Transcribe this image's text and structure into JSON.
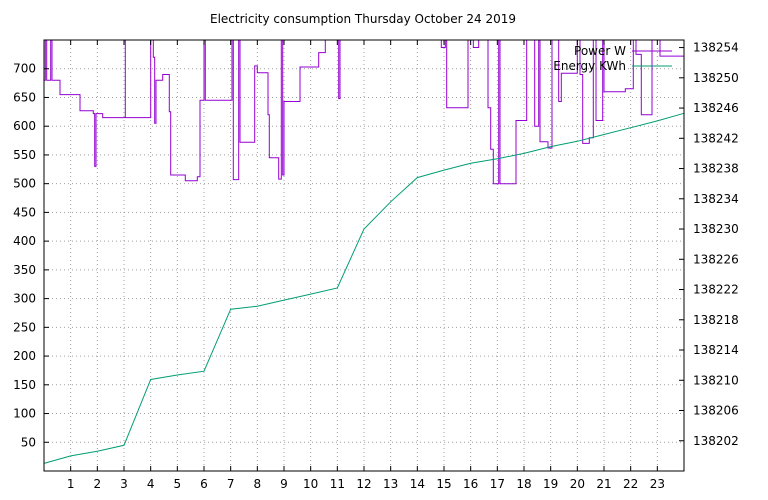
{
  "chart_data": {
    "type": "line",
    "title": "Electricity consumption Thursday October 24 2019",
    "xlim": [
      0,
      24
    ],
    "x_ticks": [
      1,
      2,
      3,
      4,
      5,
      6,
      7,
      8,
      9,
      10,
      11,
      12,
      13,
      14,
      15,
      16,
      17,
      18,
      19,
      20,
      21,
      22,
      23
    ],
    "y_left": {
      "lim": [
        0,
        750
      ],
      "ticks": [
        50,
        100,
        150,
        200,
        250,
        300,
        350,
        400,
        450,
        500,
        550,
        600,
        650,
        700
      ]
    },
    "y_right": {
      "lim": [
        138198,
        138255
      ],
      "ticks": [
        138202,
        138206,
        138210,
        138214,
        138218,
        138222,
        138226,
        138230,
        138234,
        138238,
        138242,
        138246,
        138250,
        138254
      ]
    },
    "grid": true,
    "legend_position": "top-right",
    "series": [
      {
        "name": "Power W",
        "axis": "left",
        "color": "#9400d3",
        "step": true,
        "points": [
          [
            0.0,
            680
          ],
          [
            0.05,
            750
          ],
          [
            0.1,
            680
          ],
          [
            0.25,
            750
          ],
          [
            0.3,
            680
          ],
          [
            0.6,
            655
          ],
          [
            1.35,
            627
          ],
          [
            1.85,
            622
          ],
          [
            1.9,
            530
          ],
          [
            1.95,
            622
          ],
          [
            2.2,
            615
          ],
          [
            3.05,
            750
          ],
          [
            3.05,
            615
          ],
          [
            4.0,
            750
          ],
          [
            4.1,
            720
          ],
          [
            4.15,
            605
          ],
          [
            4.2,
            680
          ],
          [
            4.45,
            690
          ],
          [
            4.7,
            625
          ],
          [
            4.75,
            515
          ],
          [
            5.3,
            505
          ],
          [
            5.75,
            512
          ],
          [
            5.85,
            645
          ],
          [
            6.0,
            750
          ],
          [
            6.05,
            645
          ],
          [
            7.05,
            750
          ],
          [
            7.1,
            507
          ],
          [
            7.3,
            750
          ],
          [
            7.35,
            572
          ],
          [
            7.9,
            705
          ],
          [
            8.0,
            693
          ],
          [
            8.4,
            620
          ],
          [
            8.45,
            545
          ],
          [
            8.8,
            508
          ],
          [
            8.9,
            750
          ],
          [
            8.95,
            515
          ],
          [
            9.0,
            643
          ],
          [
            9.6,
            703
          ],
          [
            10.3,
            728
          ],
          [
            10.55,
            750
          ],
          [
            11.0,
            750
          ],
          [
            11.05,
            648
          ],
          [
            11.1,
            750
          ],
          [
            14.9,
            737
          ],
          [
            15.05,
            750
          ],
          [
            15.1,
            632
          ],
          [
            15.9,
            750
          ],
          [
            16.1,
            737
          ],
          [
            16.3,
            750
          ],
          [
            16.55,
            750
          ],
          [
            16.65,
            632
          ],
          [
            16.75,
            560
          ],
          [
            16.85,
            500
          ],
          [
            17.05,
            750
          ],
          [
            17.1,
            500
          ],
          [
            17.7,
            610
          ],
          [
            18.1,
            750
          ],
          [
            18.4,
            600
          ],
          [
            18.55,
            750
          ],
          [
            18.6,
            573
          ],
          [
            18.9,
            562
          ],
          [
            19.05,
            750
          ],
          [
            19.3,
            643
          ],
          [
            19.4,
            692
          ],
          [
            20.0,
            750
          ],
          [
            20.1,
            690
          ],
          [
            20.2,
            570
          ],
          [
            20.45,
            580
          ],
          [
            20.6,
            750
          ],
          [
            20.7,
            610
          ],
          [
            20.95,
            750
          ],
          [
            21.0,
            660
          ],
          [
            21.8,
            665
          ],
          [
            22.1,
            750
          ],
          [
            22.2,
            725
          ],
          [
            22.4,
            620
          ],
          [
            22.8,
            750
          ],
          [
            23.1,
            722
          ]
        ]
      },
      {
        "name": "Energy KWh",
        "axis": "right",
        "color": "#009e73",
        "step": false,
        "points": [
          [
            0.0,
            138199.0
          ],
          [
            1.0,
            138200.0
          ],
          [
            2.0,
            138200.6
          ],
          [
            3.0,
            138201.4
          ],
          [
            4.0,
            138210.1
          ],
          [
            5.0,
            138210.7
          ],
          [
            6.0,
            138211.2
          ],
          [
            7.0,
            138219.4
          ],
          [
            8.0,
            138219.8
          ],
          [
            9.0,
            138220.6
          ],
          [
            10.0,
            138221.4
          ],
          [
            11.0,
            138222.2
          ],
          [
            12.0,
            138230.0
          ],
          [
            13.0,
            138233.6
          ],
          [
            14.0,
            138236.8
          ],
          [
            15.0,
            138237.8
          ],
          [
            16.0,
            138238.7
          ],
          [
            17.0,
            138239.3
          ],
          [
            18.0,
            138240.0
          ],
          [
            19.0,
            138240.9
          ],
          [
            20.0,
            138241.6
          ],
          [
            21.0,
            138242.5
          ],
          [
            22.0,
            138243.4
          ],
          [
            23.0,
            138244.3
          ],
          [
            24.0,
            138245.3
          ]
        ]
      }
    ]
  }
}
